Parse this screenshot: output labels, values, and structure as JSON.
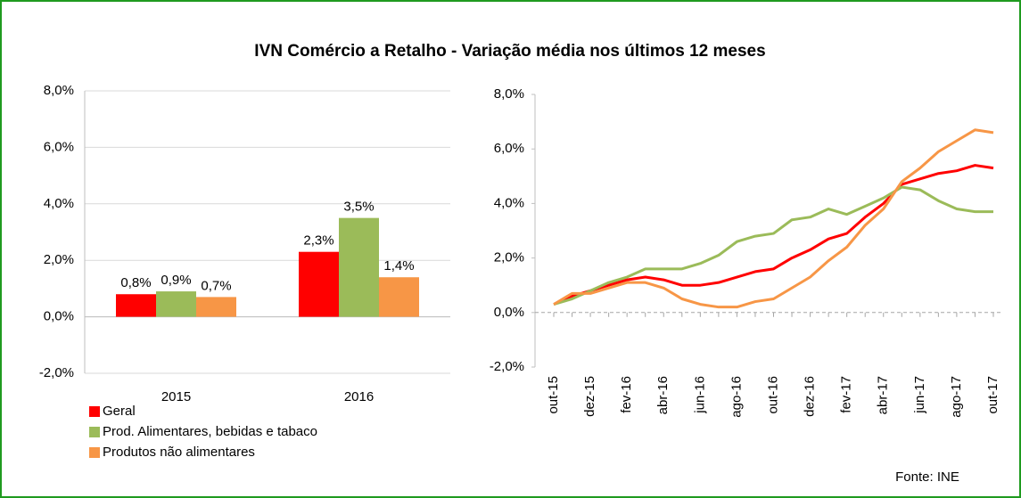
{
  "title": "IVN Comércio a Retalho - Variação média nos últimos 12 meses",
  "source": "Fonte: INE",
  "chart_data": [
    {
      "type": "bar",
      "categories": [
        "2015",
        "2016"
      ],
      "series": [
        {
          "name": "Geral",
          "color": "#ff0000",
          "values": [
            0.8,
            2.3
          ],
          "value_labels": [
            "0,8%",
            "2,3%"
          ]
        },
        {
          "name": "Prod. Alimentares, bebidas e tabaco",
          "color": "#9bbb59",
          "values": [
            0.9,
            3.5
          ],
          "value_labels": [
            "0,9%",
            "3,5%"
          ]
        },
        {
          "name": "Produtos não alimentares",
          "color": "#f79646",
          "values": [
            0.7,
            1.4
          ],
          "value_labels": [
            "0,7%",
            "1,4%"
          ]
        }
      ],
      "ylim": [
        -2,
        8
      ],
      "yticks": [
        {
          "value": -2,
          "label": "-2,0%"
        },
        {
          "value": 0,
          "label": "0,0%"
        },
        {
          "value": 2,
          "label": "2,0%"
        },
        {
          "value": 4,
          "label": "4,0%"
        },
        {
          "value": 6,
          "label": "6,0%"
        },
        {
          "value": 8,
          "label": "8,0%"
        }
      ],
      "grid": true
    },
    {
      "type": "line",
      "categories": [
        "out-15",
        null,
        "dez-15",
        null,
        "fev-16",
        null,
        "abr-16",
        null,
        "jun-16",
        null,
        "ago-16",
        null,
        "out-16",
        null,
        "dez-16",
        null,
        "fev-17",
        null,
        "abr-17",
        null,
        "jun-17",
        null,
        "ago-17",
        null,
        "out-17"
      ],
      "series": [
        {
          "name": "Geral",
          "color": "#ff0000",
          "values": [
            0.3,
            0.6,
            0.8,
            1.0,
            1.2,
            1.3,
            1.2,
            1.0,
            1.0,
            1.1,
            1.3,
            1.5,
            1.6,
            2.0,
            2.3,
            2.7,
            2.9,
            3.5,
            4.0,
            4.7,
            4.9,
            5.1,
            5.2,
            5.4,
            5.3
          ]
        },
        {
          "name": "Prod. Alimentares, bebidas e tabaco",
          "color": "#9bbb59",
          "values": [
            0.3,
            0.5,
            0.8,
            1.1,
            1.3,
            1.6,
            1.6,
            1.6,
            1.8,
            2.1,
            2.6,
            2.8,
            2.9,
            3.4,
            3.5,
            3.8,
            3.6,
            3.9,
            4.2,
            4.6,
            4.5,
            4.1,
            3.8,
            3.7,
            3.7
          ]
        },
        {
          "name": "Produtos não alimentares",
          "color": "#f79646",
          "values": [
            0.3,
            0.7,
            0.7,
            0.9,
            1.1,
            1.1,
            0.9,
            0.5,
            0.3,
            0.2,
            0.2,
            0.4,
            0.5,
            0.9,
            1.3,
            1.9,
            2.4,
            3.2,
            3.8,
            4.8,
            5.3,
            5.9,
            6.3,
            6.7,
            6.6
          ]
        }
      ],
      "ylim": [
        -2,
        8
      ],
      "yticks": [
        {
          "value": -2,
          "label": "-2,0%"
        },
        {
          "value": 0,
          "label": "0,0%"
        },
        {
          "value": 2,
          "label": "2,0%"
        },
        {
          "value": 4,
          "label": "4,0%"
        },
        {
          "value": 6,
          "label": "6,0%"
        },
        {
          "value": 8,
          "label": "8,0%"
        }
      ],
      "grid": false
    }
  ]
}
